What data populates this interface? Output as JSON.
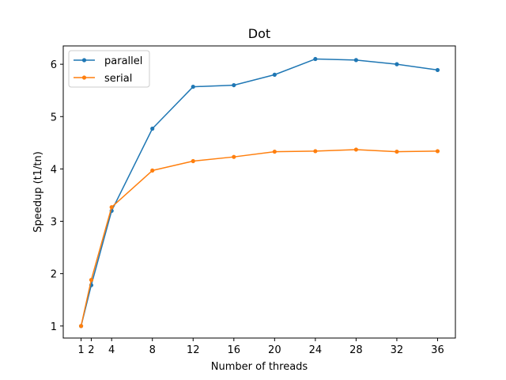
{
  "chart_data": {
    "type": "line",
    "title": "Dot",
    "xlabel": "Number of threads",
    "ylabel": "Speedup (t1/tn)",
    "x": [
      1,
      2,
      4,
      8,
      12,
      16,
      20,
      24,
      28,
      32,
      36
    ],
    "xticks": [
      1,
      2,
      4,
      8,
      12,
      16,
      20,
      24,
      28,
      32,
      36
    ],
    "yticks": [
      1,
      2,
      3,
      4,
      5,
      6
    ],
    "xlim": [
      -0.75,
      37.75
    ],
    "ylim": [
      0.77,
      6.35
    ],
    "grid": false,
    "legend_position": "top-left",
    "series": [
      {
        "name": "parallel",
        "color": "#1f77b4",
        "values": [
          1.0,
          1.78,
          3.2,
          4.77,
          5.57,
          5.6,
          5.8,
          6.1,
          6.08,
          6.0,
          5.89
        ]
      },
      {
        "name": "serial",
        "color": "#ff7f0e",
        "values": [
          1.0,
          1.88,
          3.27,
          3.97,
          4.15,
          4.23,
          4.33,
          4.34,
          4.37,
          4.33,
          4.34
        ]
      }
    ]
  }
}
